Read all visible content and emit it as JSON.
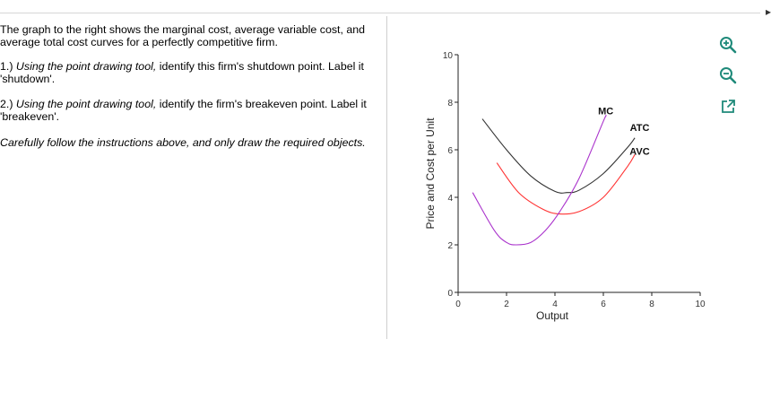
{
  "instructions": {
    "intro": "The graph to the right shows the marginal cost, average variable cost, and average total cost curves for a perfectly competitive firm.",
    "q1_number": "1.)",
    "q1_italic": "Using the point drawing tool,",
    "q1_rest": "identify this firm's shutdown point.  Label it 'shutdown'.",
    "q2_number": "2.)",
    "q2_italic": "Using the point drawing tool,",
    "q2_rest": "identify the firm's breakeven point.  Label it 'breakeven'.",
    "note": "Carefully follow the instructions above, and only draw the required objects."
  },
  "toolbar": {
    "zoom_in_icon": "zoom-in-icon",
    "zoom_out_icon": "zoom-out-icon",
    "popout_icon": "external-link-icon"
  },
  "colors": {
    "atc": "#333333",
    "avc": "#ff3333",
    "mc": "#aa33cc",
    "tool_icon": "#1f8a7a"
  },
  "chart_data": {
    "type": "line",
    "xlabel": "Output",
    "ylabel": "Price and Cost per Unit",
    "xlim": [
      0,
      10
    ],
    "ylim": [
      0,
      10
    ],
    "x_ticks": [
      0,
      2,
      4,
      6,
      8,
      10
    ],
    "y_ticks": [
      0,
      2,
      4,
      6,
      8,
      10
    ],
    "grid": false,
    "series": [
      {
        "name": "ATC",
        "x": [
          1.0,
          2.0,
          3.0,
          4.0,
          4.5,
          5.0,
          6.0,
          7.0,
          7.3
        ],
        "y": [
          7.3,
          6.0,
          4.9,
          4.25,
          4.2,
          4.3,
          5.0,
          6.1,
          6.5
        ]
      },
      {
        "name": "AVC",
        "x": [
          1.6,
          2.5,
          3.5,
          4.2,
          5.0,
          6.0,
          7.0,
          7.3
        ],
        "y": [
          5.45,
          4.2,
          3.5,
          3.3,
          3.4,
          4.0,
          5.3,
          5.8
        ]
      },
      {
        "name": "MC",
        "x": [
          0.6,
          1.5,
          2.0,
          2.4,
          3.0,
          3.6,
          4.2,
          5.0,
          6.0,
          6.1
        ],
        "y": [
          4.2,
          2.6,
          2.1,
          2.0,
          2.1,
          2.6,
          3.4,
          4.8,
          7.2,
          7.4
        ]
      }
    ],
    "labels": [
      {
        "text": "MC",
        "x": 6.1,
        "y": 7.5
      },
      {
        "text": "ATC",
        "x": 7.5,
        "y": 6.8
      },
      {
        "text": "AVC",
        "x": 7.5,
        "y": 5.8
      }
    ]
  }
}
